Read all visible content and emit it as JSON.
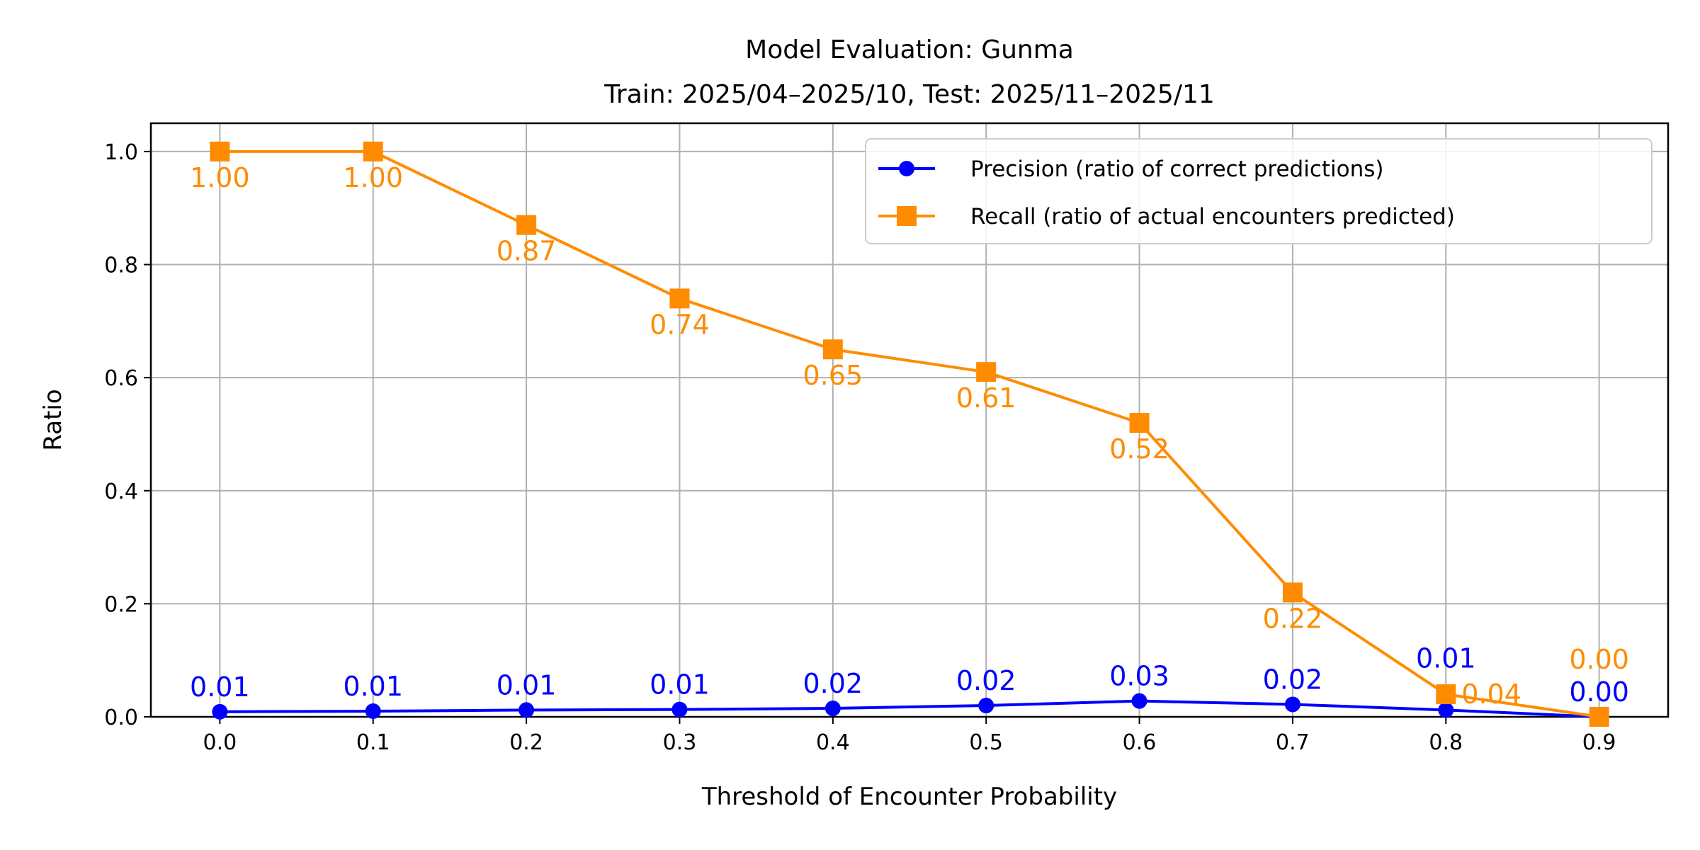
{
  "chart_data": {
    "type": "line",
    "title": "Model Evaluation: Gunma",
    "subtitle": "Train: 2025/04–2025/10, Test: 2025/11–2025/11",
    "xlabel": "Threshold of Encounter Probability",
    "ylabel": "Ratio",
    "x": [
      0.0,
      0.1,
      0.2,
      0.3,
      0.4,
      0.5,
      0.6,
      0.7,
      0.8,
      0.9
    ],
    "xticks": [
      "0.0",
      "0.1",
      "0.2",
      "0.3",
      "0.4",
      "0.5",
      "0.6",
      "0.7",
      "0.8",
      "0.9"
    ],
    "yticks": [
      "0.0",
      "0.2",
      "0.4",
      "0.6",
      "0.8",
      "1.0"
    ],
    "xlim": [
      -0.045,
      0.945
    ],
    "ylim": [
      0,
      1.05
    ],
    "grid": true,
    "legend_position": "top-right",
    "series": [
      {
        "name": "Precision (ratio of correct predictions)",
        "color": "#0000ff",
        "marker": "circle",
        "values": [
          0.009,
          0.01,
          0.012,
          0.013,
          0.015,
          0.02,
          0.028,
          0.022,
          0.012,
          0.0
        ],
        "labels": [
          "0.01",
          "0.01",
          "0.01",
          "0.01",
          "0.02",
          "0.02",
          "0.03",
          "0.02",
          "0.01",
          "0.00"
        ]
      },
      {
        "name": "Recall (ratio of actual encounters predicted)",
        "color": "#ff8c00",
        "marker": "square",
        "values": [
          1.0,
          1.0,
          0.87,
          0.74,
          0.65,
          0.61,
          0.52,
          0.22,
          0.04,
          0.0
        ],
        "labels": [
          "1.00",
          "1.00",
          "0.87",
          "0.74",
          "0.65",
          "0.61",
          "0.52",
          "0.22",
          "0.04",
          "0.00"
        ]
      }
    ]
  }
}
